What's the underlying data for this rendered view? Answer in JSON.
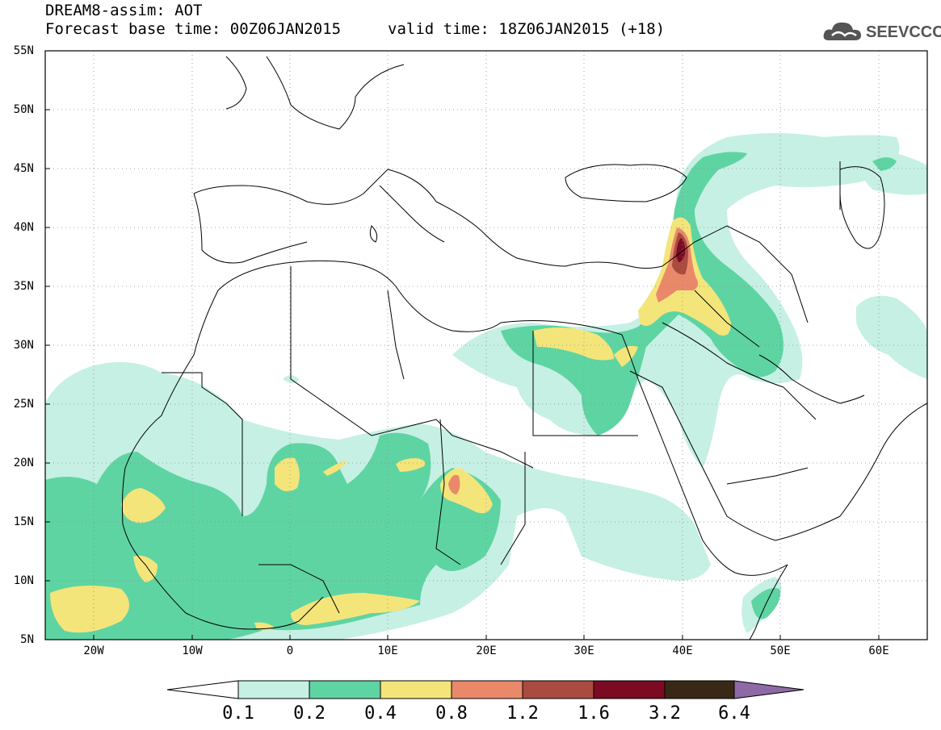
{
  "header": {
    "line1": "DREAM8-assim: AOT",
    "line2": "Forecast base time: 00Z06JAN2015",
    "valid": "valid time: 18Z06JAN2015 (+18)"
  },
  "logo": {
    "text": "SEEVCCC",
    "icon": "cloud-icon"
  },
  "axes": {
    "lat_labels": [
      "55N",
      "50N",
      "45N",
      "40N",
      "35N",
      "30N",
      "25N",
      "20N",
      "15N",
      "10N",
      "5N"
    ],
    "lon_labels": [
      "20W",
      "10W",
      "0",
      "10E",
      "20E",
      "30E",
      "40E",
      "50E",
      "60E"
    ]
  },
  "colorbar": {
    "labels": [
      "0.1",
      "0.2",
      "0.4",
      "0.8",
      "1.2",
      "1.6",
      "3.2",
      "6.4"
    ],
    "colors": [
      "#ffffff",
      "#c6f0e4",
      "#5fd4a3",
      "#f4e57b",
      "#e9896a",
      "#a94b3f",
      "#7c0a22",
      "#3a2816",
      "#8d6aa6"
    ]
  }
}
